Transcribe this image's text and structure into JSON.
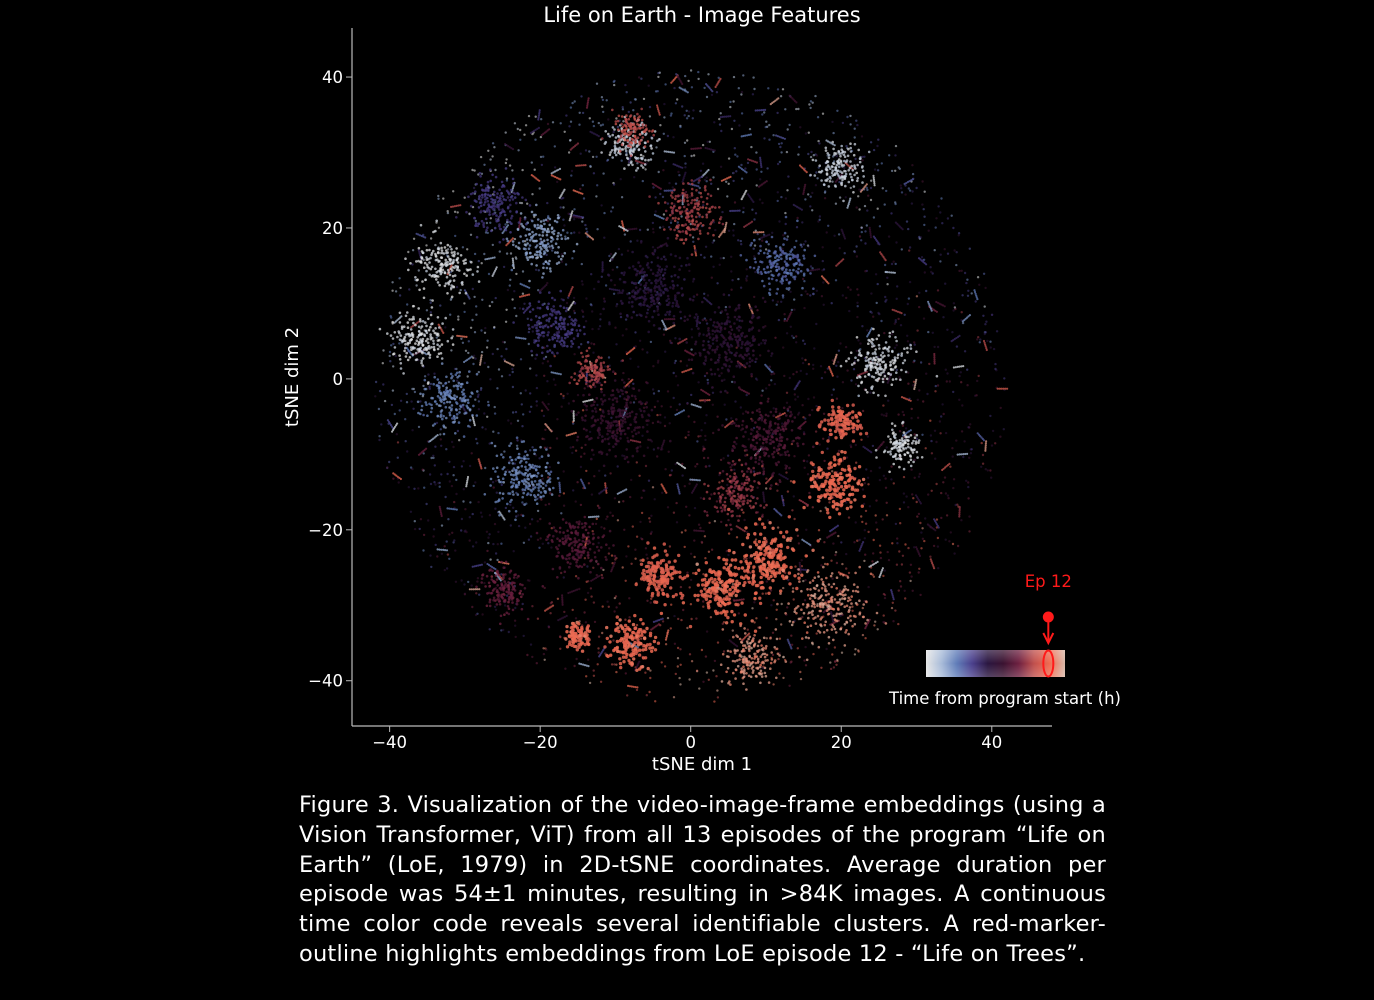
{
  "chart_data": {
    "type": "scatter",
    "title": "Life on Earth - Image Features",
    "xlabel": "tSNE dim 1",
    "ylabel": "tSNE dim 2",
    "xlim": [
      -45,
      48
    ],
    "ylim": [
      -46,
      46.5
    ],
    "xticks": [
      -40,
      -20,
      0,
      20,
      40
    ],
    "yticks": [
      -40,
      -20,
      0,
      20,
      40
    ],
    "xtick_labels": [
      "−40",
      "−20",
      "0",
      "20",
      "40"
    ],
    "ytick_labels": [
      "−40",
      "−20",
      "0",
      "20",
      "40"
    ],
    "grid": false,
    "point_count_shown": 84000,
    "color_encoding": "Time from program start (h)",
    "colormap": [
      "#e6e6e6",
      "#a9bcd9",
      "#5f7cb8",
      "#4a3f8c",
      "#2a1640",
      "#3a1230",
      "#6e2040",
      "#c0504d",
      "#f06a50",
      "#d8b8a8"
    ],
    "highlight": {
      "label": "Ep 12",
      "color": "#ff1a1a",
      "colorbar_position": 0.88
    },
    "colorbar_label": "Time from program start (h)",
    "clusters": [
      {
        "x": 10,
        "y": -24,
        "spread": 3.5,
        "time": 0.88
      },
      {
        "x": 4,
        "y": -28,
        "spread": 3,
        "time": 0.88
      },
      {
        "x": -8,
        "y": -35,
        "spread": 2.5,
        "time": 0.88
      },
      {
        "x": -15,
        "y": -34,
        "spread": 1.5,
        "time": 0.88
      },
      {
        "x": 19,
        "y": -14,
        "spread": 3,
        "time": 0.88
      },
      {
        "x": 20,
        "y": -6,
        "spread": 2,
        "time": 0.85
      },
      {
        "x": -4,
        "y": -26,
        "spread": 2.5,
        "time": 0.85
      },
      {
        "x": 18,
        "y": -30,
        "spread": 4,
        "time": 0.95
      },
      {
        "x": 8,
        "y": -37,
        "spread": 3,
        "time": 0.95
      },
      {
        "x": -36,
        "y": 5,
        "spread": 3,
        "time": 0.02
      },
      {
        "x": -33,
        "y": 15,
        "spread": 3,
        "time": 0.02
      },
      {
        "x": 25,
        "y": 2,
        "spread": 3,
        "time": 0.03
      },
      {
        "x": 28,
        "y": -9,
        "spread": 2,
        "time": 0.02
      },
      {
        "x": -8,
        "y": 31,
        "spread": 2.5,
        "time": 0.05
      },
      {
        "x": 20,
        "y": 28,
        "spread": 2.5,
        "time": 0.05
      },
      {
        "x": -32,
        "y": -3,
        "spread": 3,
        "time": 0.2
      },
      {
        "x": -22,
        "y": -13,
        "spread": 3.5,
        "time": 0.2
      },
      {
        "x": -20,
        "y": 18,
        "spread": 3,
        "time": 0.15
      },
      {
        "x": 12,
        "y": 15,
        "spread": 3,
        "time": 0.25
      },
      {
        "x": -18,
        "y": 7,
        "spread": 3,
        "time": 0.35
      },
      {
        "x": -26,
        "y": 23,
        "spread": 3,
        "time": 0.35
      },
      {
        "x": -5,
        "y": 12,
        "spread": 4,
        "time": 0.45
      },
      {
        "x": 5,
        "y": 5,
        "spread": 4,
        "time": 0.5
      },
      {
        "x": -10,
        "y": -5,
        "spread": 4,
        "time": 0.55
      },
      {
        "x": 10,
        "y": -8,
        "spread": 4,
        "time": 0.6
      },
      {
        "x": -15,
        "y": -22,
        "spread": 3,
        "time": 0.62
      },
      {
        "x": -25,
        "y": -28,
        "spread": 2.5,
        "time": 0.65
      },
      {
        "x": 0,
        "y": 22,
        "spread": 3,
        "time": 0.75
      },
      {
        "x": -8,
        "y": 33,
        "spread": 2,
        "time": 0.78
      },
      {
        "x": -13,
        "y": 1,
        "spread": 2,
        "time": 0.75
      },
      {
        "x": 6,
        "y": -15,
        "spread": 3,
        "time": 0.72
      }
    ]
  },
  "caption": "Figure 3. Visualization of the video-image-frame embeddings (using a Vision Transformer, ViT) from all 13 episodes of the program “Life on Earth” (LoE, 1979) in 2D-tSNE coordinates. Average duration per episode was 54±1 minutes, resulting in >84K images. A continuous time color code reveals several identifiable clusters. A red-marker-outline highlights embeddings from LoE episode 12 - “Life on Trees”."
}
